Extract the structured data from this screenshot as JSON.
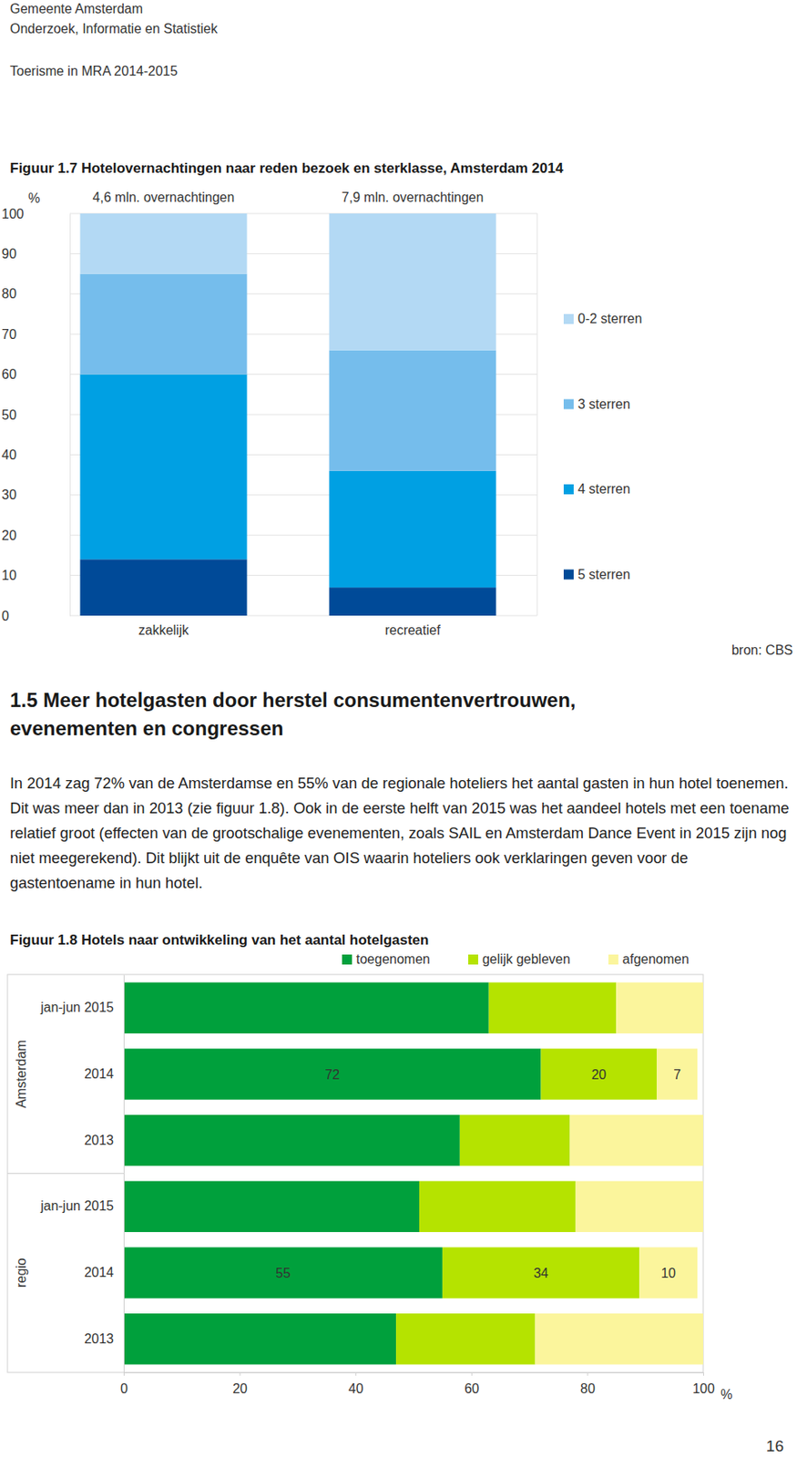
{
  "header": [
    "Gemeente Amsterdam",
    "Onderzoek, Informatie en Statistiek",
    "Toerisme in MRA 2014-2015"
  ],
  "section": {
    "heading": "1.5 Meer hotelgasten door herstel consumentenvertrouwen, evenementen en congressen",
    "paragraph": "In 2014 zag 72% van de Amsterdamse en 55% van de regionale hoteliers het aantal gasten in hun hotel toenemen. Dit was meer dan in 2013 (zie figuur 1.8). Ook in de eerste helft van 2015 was het aandeel hotels met een toename relatief groot (effecten van de grootschalige evenementen, zoals SAIL en Amsterdam Dance Event in 2015 zijn nog niet meegerekend). Dit blijkt uit de enquête van OIS waarin hoteliers ook verklaringen geven voor de gastentoename in hun hotel."
  },
  "page_number": 16,
  "chart_data": [
    {
      "type": "bar",
      "title": "Figuur 1.7 Hotelovernachtingen naar reden bezoek en sterklasse, Amsterdam 2014",
      "y_label": "%",
      "source": "bron: CBS",
      "categories": [
        "zakkelijk",
        "recreatief"
      ],
      "annotations": [
        "4,6 mln. overnachtingen",
        "7,9 mln. overnachtingen"
      ],
      "series": [
        {
          "name": "5 sterren",
          "color": "#004a98",
          "values": [
            14,
            7
          ]
        },
        {
          "name": "4 sterren",
          "color": "#00a0e3",
          "values": [
            46,
            29
          ]
        },
        {
          "name": "3 sterren",
          "color": "#75bdec",
          "values": [
            25,
            30
          ]
        },
        {
          "name": "0-2 sterren",
          "color": "#b3d9f4",
          "values": [
            15,
            34
          ]
        }
      ],
      "stacked": true,
      "ylim": [
        0,
        100
      ],
      "yticks": [
        0,
        10,
        20,
        30,
        40,
        50,
        60,
        70,
        80,
        90,
        100
      ],
      "grid": true,
      "legend": "right"
    },
    {
      "type": "bar",
      "orientation": "horizontal",
      "stacked": true,
      "title": "Figuur 1.8 Hotels naar ontwikkeling van het aantal hotelgasten",
      "x_label": "%",
      "categories": [
        "jan-jun 2015",
        "2014",
        "2013",
        "jan-jun 2015",
        "2014",
        "2013"
      ],
      "groups": [
        "Amsterdam",
        "Amsterdam",
        "Amsterdam",
        "regio",
        "regio",
        "regio"
      ],
      "series": [
        {
          "name": "toegenomen",
          "color": "#00a03c",
          "values": [
            63,
            72,
            58,
            51,
            55,
            47
          ],
          "value_labels": [
            null,
            "72",
            null,
            null,
            "55",
            null
          ]
        },
        {
          "name": "gelijk gebleven",
          "color": "#b5e300",
          "values": [
            22,
            20,
            19,
            27,
            34,
            24
          ],
          "value_labels": [
            null,
            "20",
            null,
            null,
            "34",
            null
          ]
        },
        {
          "name": "afgenomen",
          "color": "#fbf59c",
          "values": [
            15,
            7,
            23,
            22,
            10,
            29
          ],
          "value_labels": [
            null,
            "7",
            null,
            null,
            "10",
            null
          ]
        }
      ],
      "xlim": [
        0,
        100
      ],
      "xticks": [
        0,
        20,
        40,
        60,
        80,
        100
      ],
      "grid": false,
      "legend": "top"
    }
  ]
}
